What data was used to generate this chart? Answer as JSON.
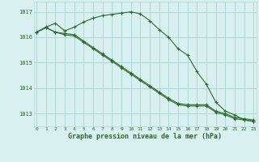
{
  "x": [
    0,
    1,
    2,
    3,
    4,
    5,
    6,
    7,
    8,
    9,
    10,
    11,
    12,
    13,
    14,
    15,
    16,
    17,
    18,
    19,
    20,
    21,
    22,
    23
  ],
  "line1": [
    1016.2,
    1016.4,
    1016.55,
    1016.25,
    1016.4,
    1016.6,
    1016.75,
    1016.85,
    1016.9,
    1016.95,
    1017.0,
    1016.92,
    1016.65,
    1016.3,
    1016.0,
    1015.55,
    1015.3,
    1014.65,
    1014.15,
    1013.45,
    1013.1,
    1012.95,
    1012.75,
    1012.7
  ],
  "line2": [
    1016.2,
    1016.38,
    1016.2,
    1016.15,
    1016.1,
    1015.85,
    1015.6,
    1015.35,
    1015.1,
    1014.85,
    1014.6,
    1014.35,
    1014.1,
    1013.85,
    1013.6,
    1013.4,
    1013.35,
    1013.35,
    1013.35,
    1013.1,
    1013.0,
    1012.85,
    1012.8,
    1012.75
  ],
  "line3": [
    1016.2,
    1016.38,
    1016.2,
    1016.1,
    1016.05,
    1015.8,
    1015.55,
    1015.3,
    1015.05,
    1014.8,
    1014.55,
    1014.3,
    1014.05,
    1013.8,
    1013.55,
    1013.35,
    1013.3,
    1013.3,
    1013.3,
    1013.05,
    1012.95,
    1012.8,
    1012.75,
    1012.7
  ],
  "line_color": "#2d6a2d",
  "bg_color": "#d8f0f0",
  "grid_color": "#b0d8d8",
  "label_color": "#2d6a2d",
  "xlabel": "Graphe pression niveau de la mer (hPa)",
  "ylim": [
    1012.5,
    1017.4
  ],
  "yticks": [
    1013,
    1014,
    1015,
    1016,
    1017
  ],
  "xticks": [
    0,
    1,
    2,
    3,
    4,
    5,
    6,
    7,
    8,
    9,
    10,
    11,
    12,
    13,
    14,
    15,
    16,
    17,
    18,
    19,
    20,
    21,
    22,
    23
  ]
}
